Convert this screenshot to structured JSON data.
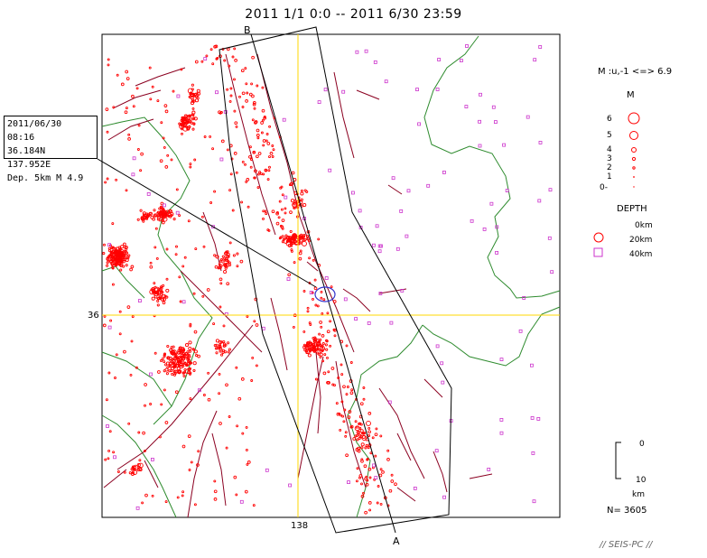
{
  "title": "2011 1/1 0:0 -- 2011 6/30 23:59",
  "info_box": {
    "line1": "2011/06/30 08:16",
    "line2": "36.184N  137.952E",
    "line3": "Dep. 5km   M 4.9"
  },
  "axis": {
    "lat_label": "36",
    "lon_label": "138"
  },
  "section_labels": {
    "start": "B",
    "end": "A"
  },
  "magnitude_legend": {
    "range": "M :u,-1 <=> 6.9",
    "heading": "M",
    "levels": [
      "6",
      "5",
      "4",
      "3",
      "2",
      "1",
      "0-"
    ]
  },
  "depth_legend": {
    "heading": "DEPTH",
    "levels": [
      "0km",
      "20km",
      "40km"
    ]
  },
  "depth_scale": {
    "top": "0",
    "bottom": "10",
    "unit": "km"
  },
  "count": "N= 3605",
  "footer": "// SEIS-PC //",
  "colors": {
    "shallow": "#ff0000",
    "deep": "#cc33cc",
    "fault": "#8b0020",
    "boundary": "#2e8b2e",
    "gridline": "#ffd700",
    "mainshock": "#3333cc"
  }
}
